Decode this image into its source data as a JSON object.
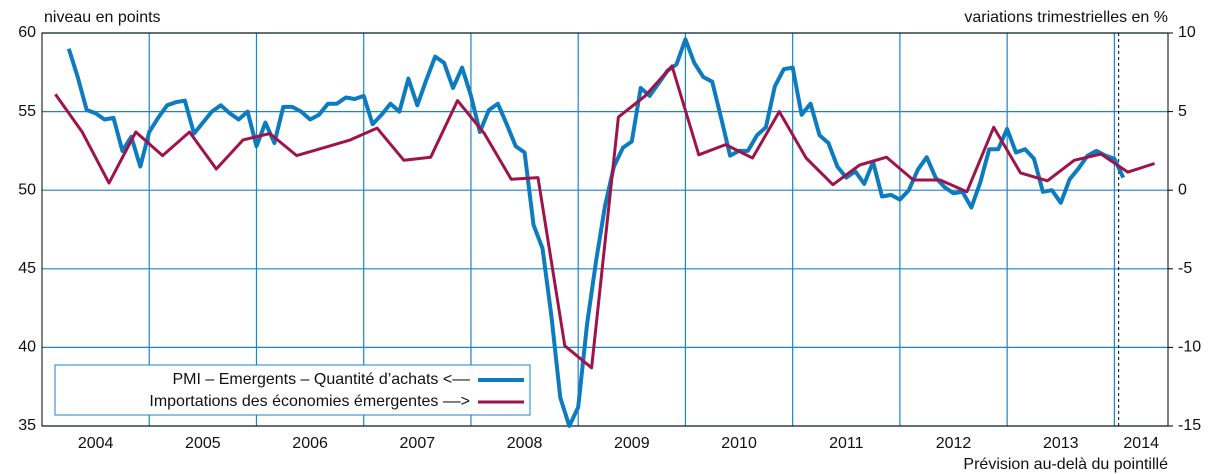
{
  "chart_data": {
    "type": "line",
    "ylabel": "niveau en points",
    "y2label": "variations trimestrielles en %",
    "annotation": "Prévision au-delà du pointillé",
    "forecast_x": 2014.04,
    "xlim": [
      2004,
      2014.5
    ],
    "xticks": [
      {
        "value": 2004.5,
        "label": "2004"
      },
      {
        "value": 2005.5,
        "label": "2005"
      },
      {
        "value": 2006.5,
        "label": "2006"
      },
      {
        "value": 2007.5,
        "label": "2007"
      },
      {
        "value": 2008.5,
        "label": "2008"
      },
      {
        "value": 2009.5,
        "label": "2009"
      },
      {
        "value": 2010.5,
        "label": "2010"
      },
      {
        "value": 2011.5,
        "label": "2011"
      },
      {
        "value": 2012.5,
        "label": "2012"
      },
      {
        "value": 2013.5,
        "label": "2013"
      },
      {
        "value": 2014.25,
        "label": "2014"
      }
    ],
    "xgrid": [
      2005,
      2006,
      2007,
      2008,
      2009,
      2010,
      2011,
      2012,
      2013,
      2014
    ],
    "ylim": [
      35,
      60
    ],
    "yticks": [
      35,
      40,
      45,
      50,
      55,
      60
    ],
    "y2lim": [
      -15,
      10
    ],
    "y2ticks": [
      -15,
      -10,
      -5,
      0,
      5,
      10
    ],
    "grid": true,
    "legend": "lower left",
    "series": [
      {
        "name": "PMI – Emergents – Quantité d’achats <––",
        "color": "#0d7bbf",
        "axis": "y",
        "x": [
          2004.25,
          2004.333,
          2004.417,
          2004.5,
          2004.583,
          2004.667,
          2004.75,
          2004.833,
          2004.917,
          2005,
          2005.083,
          2005.167,
          2005.25,
          2005.333,
          2005.417,
          2005.5,
          2005.583,
          2005.667,
          2005.75,
          2005.833,
          2005.917,
          2006,
          2006.083,
          2006.167,
          2006.25,
          2006.333,
          2006.417,
          2006.5,
          2006.583,
          2006.667,
          2006.75,
          2006.833,
          2006.917,
          2007,
          2007.083,
          2007.167,
          2007.25,
          2007.333,
          2007.417,
          2007.5,
          2007.583,
          2007.667,
          2007.75,
          2007.833,
          2007.917,
          2008,
          2008.083,
          2008.167,
          2008.25,
          2008.333,
          2008.417,
          2008.5,
          2008.583,
          2008.667,
          2008.75,
          2008.833,
          2008.917,
          2009,
          2009.083,
          2009.167,
          2009.25,
          2009.333,
          2009.417,
          2009.5,
          2009.583,
          2009.667,
          2009.75,
          2009.833,
          2009.917,
          2010,
          2010.083,
          2010.167,
          2010.25,
          2010.333,
          2010.417,
          2010.5,
          2010.583,
          2010.667,
          2010.75,
          2010.833,
          2010.917,
          2011,
          2011.083,
          2011.167,
          2011.25,
          2011.333,
          2011.417,
          2011.5,
          2011.583,
          2011.667,
          2011.75,
          2011.833,
          2011.917,
          2012,
          2012.083,
          2012.167,
          2012.25,
          2012.333,
          2012.417,
          2012.5,
          2012.583,
          2012.667,
          2012.75,
          2012.833,
          2012.917,
          2013,
          2013.083,
          2013.167,
          2013.25,
          2013.333,
          2013.417,
          2013.5,
          2013.583,
          2013.667,
          2013.75,
          2013.833,
          2013.917,
          2014,
          2014.083
        ],
        "values": [
          59.0,
          57.2,
          55.1,
          54.9,
          54.5,
          54.6,
          52.5,
          53.4,
          51.5,
          53.7,
          54.6,
          55.4,
          55.6,
          55.7,
          53.6,
          54.3,
          55.0,
          55.4,
          54.9,
          54.5,
          55.0,
          52.8,
          54.3,
          53.0,
          55.3,
          55.3,
          55.0,
          54.5,
          54.8,
          55.5,
          55.5,
          55.9,
          55.8,
          56.0,
          54.2,
          54.8,
          55.5,
          55.0,
          57.1,
          55.4,
          57.0,
          58.5,
          58.1,
          56.5,
          57.8,
          56.0,
          53.7,
          55.1,
          55.5,
          54.2,
          52.8,
          52.4,
          47.8,
          46.3,
          42.0,
          36.8,
          35.0,
          36.2,
          41.5,
          45.5,
          49.0,
          51.5,
          52.7,
          53.1,
          56.5,
          56.0,
          56.8,
          57.6,
          58.0,
          59.6,
          58.1,
          57.2,
          56.9,
          54.6,
          52.2,
          52.5,
          52.5,
          53.5,
          54.0,
          56.6,
          57.7,
          57.8,
          54.8,
          55.5,
          53.5,
          53.0,
          51.5,
          50.8,
          51.2,
          50.4,
          51.8,
          49.6,
          49.7,
          49.4,
          50.0,
          51.3,
          52.1,
          50.8,
          50.2,
          49.8,
          49.9,
          48.9,
          50.5,
          52.6,
          52.6,
          53.9,
          52.4,
          52.6,
          52.0,
          49.9,
          50.0,
          49.2,
          50.7,
          51.4,
          52.2,
          52.5,
          52.2,
          52.0,
          50.8
        ]
      },
      {
        "name": "Importations des économies émergentes ––>",
        "color": "#a0134a",
        "axis": "y2",
        "x": [
          2004.125,
          2004.375,
          2004.625,
          2004.875,
          2005.125,
          2005.375,
          2005.625,
          2005.875,
          2006.125,
          2006.375,
          2006.625,
          2006.875,
          2007.125,
          2007.375,
          2007.625,
          2007.875,
          2008.125,
          2008.375,
          2008.625,
          2008.875,
          2009.125,
          2009.375,
          2009.625,
          2009.875,
          2010.125,
          2010.375,
          2010.625,
          2010.875,
          2011.125,
          2011.375,
          2011.625,
          2011.875,
          2012.125,
          2012.375,
          2012.625,
          2012.875,
          2013.125,
          2013.375,
          2013.625,
          2013.875,
          2014.125,
          2014.375
        ],
        "values": [
          6.1,
          3.7,
          0.45,
          3.7,
          2.2,
          3.7,
          1.35,
          3.2,
          3.6,
          2.2,
          2.7,
          3.2,
          3.95,
          1.9,
          2.1,
          5.7,
          3.6,
          0.7,
          0.8,
          -9.9,
          -11.3,
          4.65,
          6.0,
          7.9,
          2.25,
          2.9,
          2.05,
          5.0,
          2.05,
          0.35,
          1.6,
          2.1,
          0.65,
          0.65,
          -0.1,
          4.0,
          1.1,
          0.6,
          1.9,
          2.3,
          1.15,
          1.7
        ]
      }
    ]
  }
}
